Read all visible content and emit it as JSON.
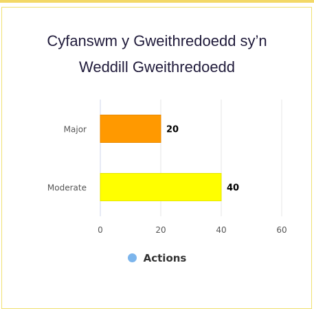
{
  "chart_data": {
    "type": "bar",
    "orientation": "horizontal",
    "title_lines": [
      "Cyfanswm y Gweithredoedd sy’n",
      "Weddill Gweithredoedd"
    ],
    "categories": [
      "Major",
      "Moderate"
    ],
    "series": [
      {
        "name": "Actions",
        "values": [
          20,
          40
        ],
        "colors": [
          "#ff9900",
          "#ffff00"
        ],
        "edge_colors": [
          "#e88800",
          "#e6e600"
        ]
      }
    ],
    "xlim": [
      0,
      60
    ],
    "x_ticks": [
      0,
      20,
      40,
      60
    ],
    "x_tick_labels": [
      "0",
      "20",
      "40",
      "60"
    ],
    "data_labels": [
      "20",
      "40"
    ],
    "grid": true,
    "legend": {
      "position": "bottom-center",
      "label": "Actions",
      "color": "#7cb5ec"
    }
  }
}
